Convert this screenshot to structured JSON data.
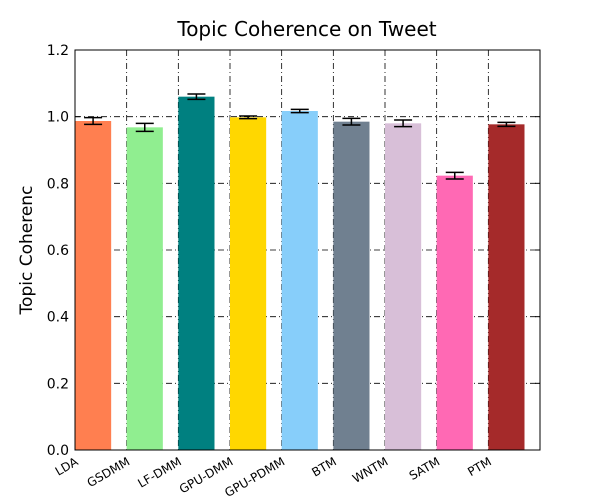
{
  "chart_data": {
    "type": "bar",
    "title": "Topic Coherence on Tweet",
    "y_label": "Topic Coherenc",
    "categories": [
      "LDA",
      "GSDMM",
      "LF-DMM",
      "GPU-DMM",
      "GPU-PDMM",
      "BTM",
      "WNTM",
      "SATM",
      "PTM"
    ],
    "values": [
      0.987,
      0.968,
      1.06,
      0.998,
      1.017,
      0.985,
      0.98,
      0.823,
      0.977
    ],
    "errors": [
      0.01,
      0.012,
      0.008,
      0.004,
      0.005,
      0.01,
      0.01,
      0.01,
      0.006
    ],
    "colors": [
      "#ff7f50",
      "#90ee90",
      "#008080",
      "#ffd700",
      "#87cefa",
      "#708090",
      "#d8bfd8",
      "#ff69b4",
      "#a52a2a"
    ],
    "ylim": [
      0,
      1.2
    ],
    "yticks": [
      {
        "value": 0,
        "label": "0.0"
      },
      0.2,
      0.4,
      0.6,
      0.8,
      {
        "value": 1,
        "label": "1.0"
      },
      1.2
    ],
    "grid": true
  }
}
